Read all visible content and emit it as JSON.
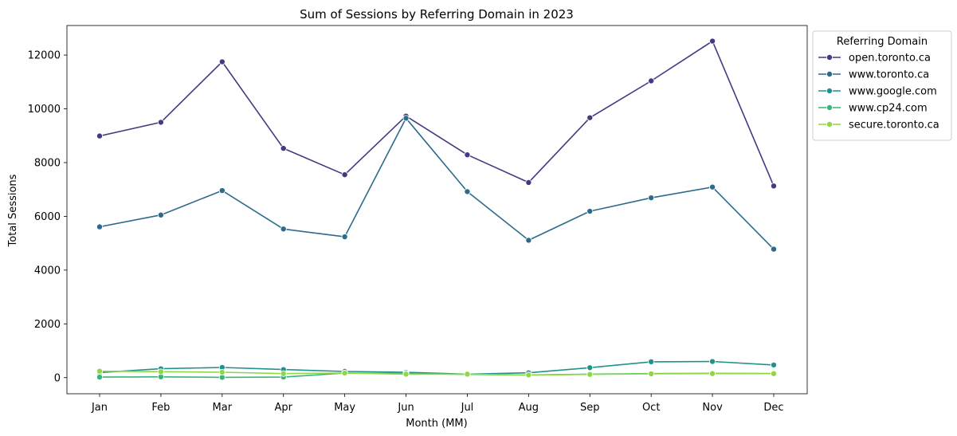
{
  "chart_data": {
    "type": "line",
    "title": "Sum of Sessions by Referring Domain in 2023",
    "xlabel": "Month (MM)",
    "ylabel": "Total Sessions",
    "categories": [
      "Jan",
      "Feb",
      "Mar",
      "Apr",
      "May",
      "Jun",
      "Jul",
      "Aug",
      "Sep",
      "Oct",
      "Nov",
      "Dec"
    ],
    "ylim": [
      -600,
      13100
    ],
    "yticks": [
      0,
      2000,
      4000,
      6000,
      8000,
      10000,
      12000
    ],
    "grid": false,
    "legend": {
      "title": "Referring Domain",
      "placement": "outside top-right"
    },
    "series": [
      {
        "name": "open.toronto.ca",
        "color": "#433a83",
        "values": [
          8990,
          9500,
          11750,
          8530,
          7550,
          9730,
          8290,
          7260,
          9670,
          11040,
          12520,
          7130
        ]
      },
      {
        "name": "www.toronto.ca",
        "color": "#2d6b8e",
        "values": [
          5610,
          6050,
          6960,
          5530,
          5240,
          9650,
          6920,
          5110,
          6190,
          6690,
          7090,
          4780
        ]
      },
      {
        "name": "www.google.com",
        "color": "#20928c",
        "values": [
          190,
          330,
          380,
          300,
          230,
          200,
          130,
          180,
          370,
          590,
          600,
          470
        ]
      },
      {
        "name": "www.cp24.com",
        "color": "#35b779",
        "values": [
          20,
          30,
          10,
          20,
          170,
          160,
          120,
          100,
          130,
          150,
          160,
          150
        ]
      },
      {
        "name": "secure.toronto.ca",
        "color": "#8fd744",
        "values": [
          240,
          220,
          200,
          150,
          170,
          130,
          130,
          100,
          120,
          140,
          150,
          150
        ]
      }
    ]
  }
}
